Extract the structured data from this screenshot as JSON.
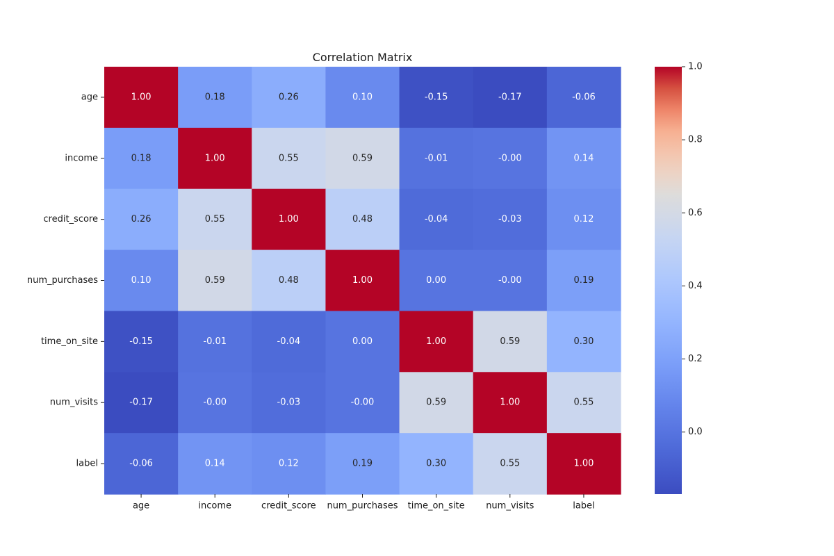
{
  "chart_data": {
    "type": "heatmap",
    "title": "Correlation Matrix",
    "x_categories": [
      "age",
      "income",
      "credit_score",
      "num_purchases",
      "time_on_site",
      "num_visits",
      "label"
    ],
    "y_categories": [
      "age",
      "income",
      "credit_score",
      "num_purchases",
      "time_on_site",
      "num_visits",
      "label"
    ],
    "values": [
      [
        1.0,
        0.18,
        0.26,
        0.1,
        -0.15,
        -0.17,
        -0.06
      ],
      [
        0.18,
        1.0,
        0.55,
        0.59,
        -0.01,
        -0.0,
        0.14
      ],
      [
        0.26,
        0.55,
        1.0,
        0.48,
        -0.04,
        -0.03,
        0.12
      ],
      [
        0.1,
        0.59,
        0.48,
        1.0,
        0.0,
        -0.0,
        0.19
      ],
      [
        -0.15,
        -0.01,
        -0.04,
        0.0,
        1.0,
        0.59,
        0.3
      ],
      [
        -0.17,
        -0.0,
        -0.03,
        -0.0,
        0.59,
        1.0,
        0.55
      ],
      [
        -0.06,
        0.14,
        0.12,
        0.19,
        0.3,
        0.55,
        1.0
      ]
    ],
    "cell_labels": [
      [
        "1.00",
        "0.18",
        "0.26",
        "0.10",
        "-0.15",
        "-0.17",
        "-0.06"
      ],
      [
        "0.18",
        "1.00",
        "0.55",
        "0.59",
        "-0.01",
        "-0.00",
        "0.14"
      ],
      [
        "0.26",
        "0.55",
        "1.00",
        "0.48",
        "-0.04",
        "-0.03",
        "0.12"
      ],
      [
        "0.10",
        "0.59",
        "0.48",
        "1.00",
        "0.00",
        "-0.00",
        "0.19"
      ],
      [
        "-0.15",
        "-0.01",
        "-0.04",
        "0.00",
        "1.00",
        "0.59",
        "0.30"
      ],
      [
        "-0.17",
        "-0.00",
        "-0.03",
        "-0.00",
        "0.59",
        "1.00",
        "0.55"
      ],
      [
        "-0.06",
        "0.14",
        "0.12",
        "0.19",
        "0.30",
        "0.55",
        "1.00"
      ]
    ],
    "colormap": "coolwarm",
    "vmin": -0.17,
    "vmax": 1.0,
    "colorbar": {
      "ticks": [
        0.0,
        0.2,
        0.4,
        0.6,
        0.8,
        1.0
      ],
      "tick_labels": [
        "0.0",
        "0.2",
        "0.4",
        "0.6",
        "0.8",
        "1.0"
      ],
      "placement": "right"
    },
    "grid": false
  }
}
